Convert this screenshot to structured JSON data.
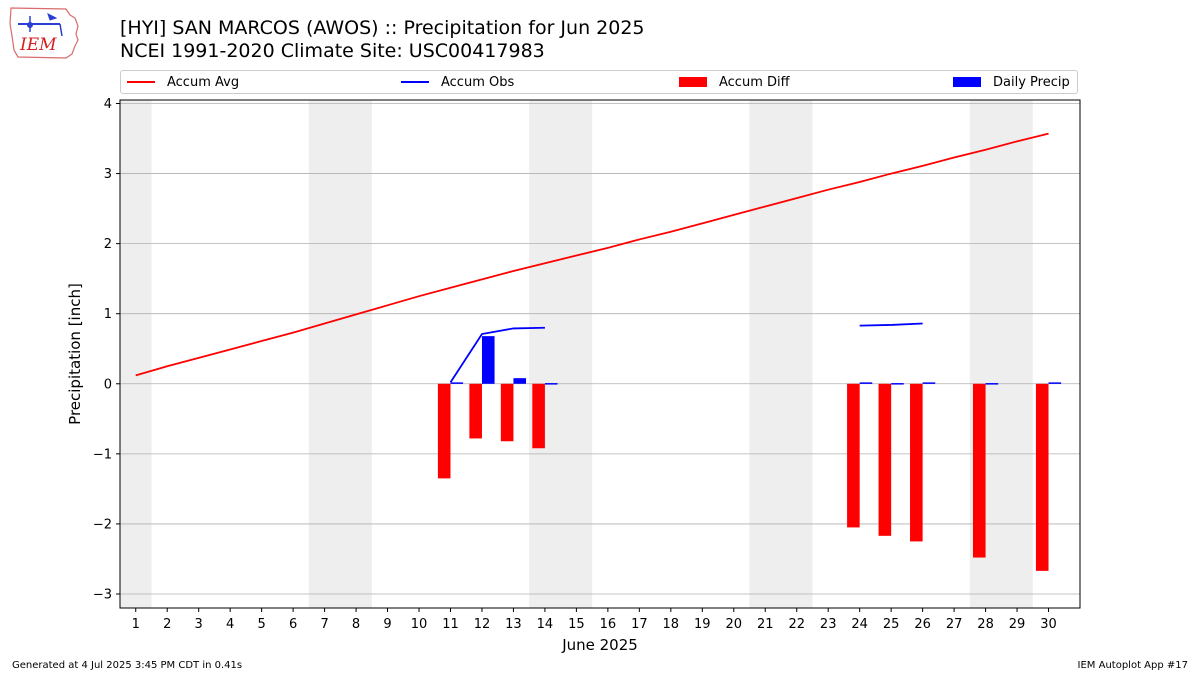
{
  "header": {
    "logo_text": "IEM",
    "title_line1": "[HYI] SAN MARCOS (AWOS) :: Precipitation for Jun 2025",
    "title_line2": "NCEI 1991-2020 Climate Site: USC00417983"
  },
  "footer": {
    "generated": "Generated at 4 Jul 2025 3:45 PM CDT in 0.41s",
    "app": "IEM Autoplot App #17"
  },
  "colors": {
    "avg": "#ff0000",
    "obs": "#0000ff",
    "diff": "#ff0000",
    "daily": "#0000ff",
    "weekend": "#eeeeee",
    "grid": "#b0b0b0"
  },
  "chart_data": {
    "type": "bar",
    "title": "[HYI] SAN MARCOS (AWOS) :: Precipitation for Jun 2025",
    "subtitle": "NCEI 1991-2020 Climate Site: USC00417983",
    "xlabel": "June 2025",
    "ylabel": "Precipitation [inch]",
    "xlim": [
      0.5,
      31
    ],
    "ylim": [
      -3.2,
      4.05
    ],
    "yticks": [
      4,
      3,
      2,
      1,
      0,
      -1,
      -2,
      -3
    ],
    "ytick_labels": [
      "4",
      "3",
      "2",
      "1",
      "0",
      "−1",
      "−2",
      "−3"
    ],
    "x": [
      1,
      2,
      3,
      4,
      5,
      6,
      7,
      8,
      9,
      10,
      11,
      12,
      13,
      14,
      15,
      16,
      17,
      18,
      19,
      20,
      21,
      22,
      23,
      24,
      25,
      26,
      27,
      28,
      29,
      30
    ],
    "xtick_labels": [
      "1",
      "2",
      "3",
      "4",
      "5",
      "6",
      "7",
      "8",
      "9",
      "10",
      "11",
      "12",
      "13",
      "14",
      "15",
      "16",
      "17",
      "18",
      "19",
      "20",
      "21",
      "22",
      "23",
      "24",
      "25",
      "26",
      "27",
      "28",
      "29",
      "30"
    ],
    "grid": true,
    "legend_position": "top",
    "weekend_spans": [
      [
        0.5,
        1.5
      ],
      [
        6.5,
        8.5
      ],
      [
        13.5,
        15.5
      ],
      [
        20.5,
        22.5
      ],
      [
        27.5,
        29.5
      ]
    ],
    "series": [
      {
        "name": "Accum Avg",
        "kind": "line",
        "x": [
          1,
          2,
          3,
          4,
          5,
          6,
          7,
          8,
          9,
          10,
          11,
          12,
          13,
          14,
          15,
          16,
          17,
          18,
          19,
          20,
          21,
          22,
          23,
          24,
          25,
          26,
          27,
          28,
          29,
          30
        ],
        "values": [
          0.12,
          0.25,
          0.37,
          0.49,
          0.61,
          0.73,
          0.86,
          0.99,
          1.12,
          1.25,
          1.37,
          1.49,
          1.61,
          1.72,
          1.83,
          1.94,
          2.06,
          2.17,
          2.29,
          2.41,
          2.53,
          2.65,
          2.77,
          2.88,
          3.0,
          3.11,
          3.23,
          3.34,
          3.46,
          3.57
        ]
      },
      {
        "name": "Accum Obs",
        "kind": "line",
        "segments": [
          {
            "x": [
              11,
              12,
              13,
              14
            ],
            "values": [
              0.02,
              0.71,
              0.79,
              0.8
            ]
          },
          {
            "x": [
              24,
              25,
              26
            ],
            "values": [
              0.83,
              0.84,
              0.86
            ]
          }
        ]
      },
      {
        "name": "Accum Diff",
        "kind": "bar",
        "x": [
          11,
          12,
          13,
          14,
          24,
          25,
          26,
          28,
          30
        ],
        "values": [
          -1.35,
          -0.78,
          -0.82,
          -0.92,
          -2.05,
          -2.17,
          -2.25,
          -2.48,
          -2.67
        ]
      },
      {
        "name": "Daily Precip",
        "kind": "bar",
        "x": [
          11,
          12,
          13,
          14,
          24,
          25,
          26,
          28,
          30
        ],
        "values": [
          0.02,
          0.68,
          0.08,
          0.01,
          0.02,
          0.01,
          0.02,
          0.01,
          0.02
        ]
      }
    ]
  }
}
